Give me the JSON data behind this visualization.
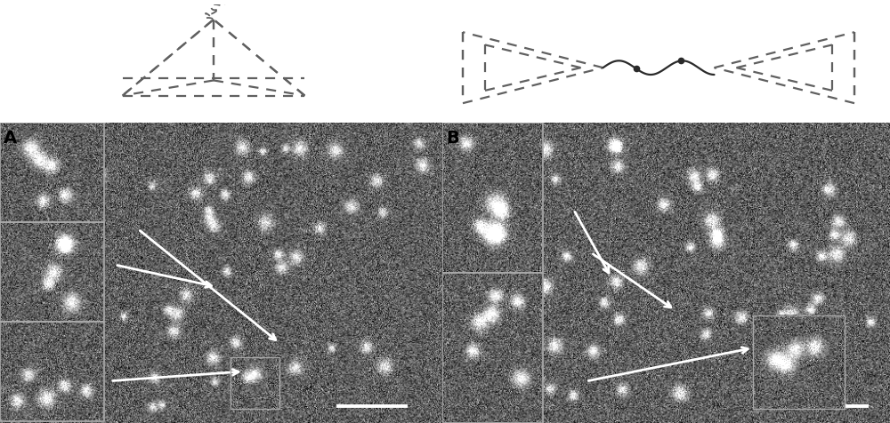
{
  "fig_width": 10.0,
  "fig_height": 4.76,
  "dpi": 100,
  "bg_color": "#ffffff",
  "label_A": "A",
  "label_B": "B",
  "label_fontsize": 14,
  "diagram_color": "#606060",
  "diagram_lw": 1.6,
  "arrow_color": "#d0d0d0",
  "scale_bar_color": "#d0d0d0",
  "img_base_gray": 95,
  "img_noise": 38,
  "panel_A_seed": 7,
  "panel_B_seed": 13,
  "panel_split": 0.497
}
